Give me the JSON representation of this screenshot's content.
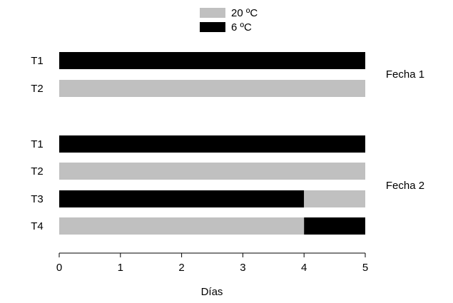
{
  "chart_data": {
    "type": "bar",
    "orientation": "horizontal",
    "stacked": true,
    "xlabel": "Días",
    "xlim": [
      0,
      5
    ],
    "xticks": [
      0,
      1,
      2,
      3,
      4,
      5
    ],
    "grid": false,
    "legend_position": "top-center",
    "legend": [
      {
        "name": "20 ºC",
        "color": "#c0c0c0"
      },
      {
        "name": "6 ºC",
        "color": "#000000"
      }
    ],
    "groups": [
      {
        "label": "Fecha 1",
        "rows": [
          {
            "label": "T1",
            "segments": [
              {
                "series": "6 ºC",
                "start": 0,
                "end": 5
              }
            ]
          },
          {
            "label": "T2",
            "segments": [
              {
                "series": "20 ºC",
                "start": 0,
                "end": 5
              }
            ]
          }
        ]
      },
      {
        "label": "Fecha 2",
        "rows": [
          {
            "label": "T1",
            "segments": [
              {
                "series": "6 ºC",
                "start": 0,
                "end": 5
              }
            ]
          },
          {
            "label": "T2",
            "segments": [
              {
                "series": "20 ºC",
                "start": 0,
                "end": 5
              }
            ]
          },
          {
            "label": "T3",
            "segments": [
              {
                "series": "6 ºC",
                "start": 0,
                "end": 4
              },
              {
                "series": "20 ºC",
                "start": 4,
                "end": 5
              }
            ]
          },
          {
            "label": "T4",
            "segments": [
              {
                "series": "20 ºC",
                "start": 0,
                "end": 4
              },
              {
                "series": "6 ºC",
                "start": 4,
                "end": 5
              }
            ]
          }
        ]
      }
    ]
  }
}
